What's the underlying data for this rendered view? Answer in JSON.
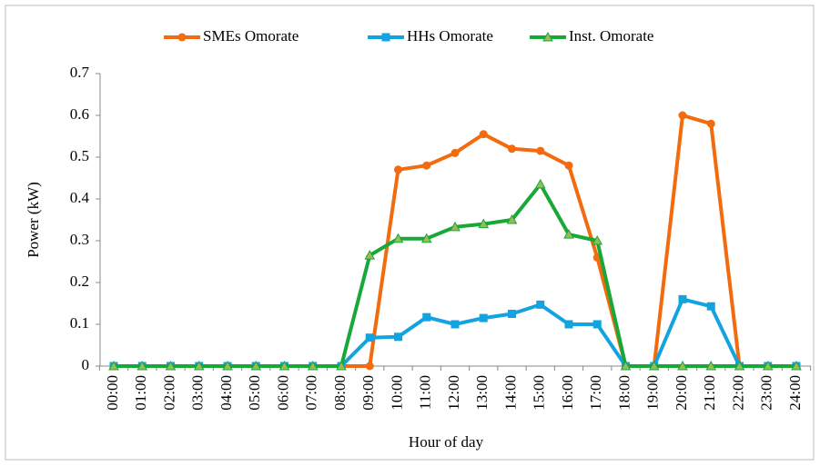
{
  "chart_data": {
    "type": "line",
    "x_label": "Hour of day",
    "y_label": "Power (kW)",
    "categories": [
      "00:00",
      "01:00",
      "02:00",
      "03:00",
      "04:00",
      "05:00",
      "06:00",
      "07:00",
      "08:00",
      "09:00",
      "10:00",
      "11:00",
      "12:00",
      "13:00",
      "14:00",
      "15:00",
      "16:00",
      "17:00",
      "18:00",
      "19:00",
      "20:00",
      "21:00",
      "22:00",
      "23:00",
      "24:00"
    ],
    "series": [
      {
        "name": "SMEs Omorate",
        "color": "#f26b0f",
        "marker": "circle",
        "values": [
          0,
          0,
          0,
          0,
          0,
          0,
          0,
          0,
          0,
          0,
          0.47,
          0.48,
          0.51,
          0.555,
          0.52,
          0.515,
          0.48,
          0.26,
          0,
          0,
          0.6,
          0.58,
          0,
          0,
          0
        ]
      },
      {
        "name": "HHs Omorate",
        "color": "#13a3e0",
        "marker": "square",
        "values": [
          0,
          0,
          0,
          0,
          0,
          0,
          0,
          0,
          0,
          0.068,
          0.07,
          0.117,
          0.1,
          0.115,
          0.125,
          0.147,
          0.1,
          0.1,
          0,
          0,
          0.16,
          0.143,
          0,
          0,
          0
        ]
      },
      {
        "name": "Inst. Omorate",
        "color": "#17a838",
        "marker": "triangle",
        "values": [
          0,
          0,
          0,
          0,
          0,
          0,
          0,
          0,
          0,
          0.265,
          0.305,
          0.305,
          0.333,
          0.34,
          0.35,
          0.435,
          0.315,
          0.3,
          0,
          0,
          0,
          0,
          0,
          0,
          0
        ]
      }
    ],
    "ylim": [
      0,
      0.7
    ],
    "yticks": [
      0,
      0.1,
      0.2,
      0.3,
      0.4,
      0.5,
      0.6,
      0.7
    ],
    "legend": "top"
  }
}
